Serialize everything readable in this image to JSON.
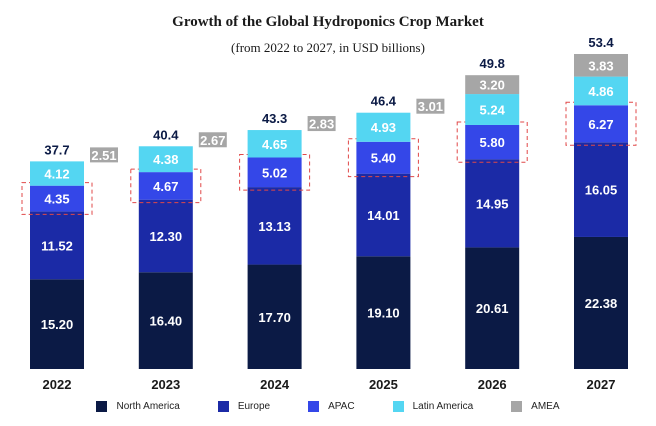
{
  "chart_data": {
    "type": "bar",
    "stacked": true,
    "title": "Growth of the Global Hydroponics Crop Market",
    "subtitle": "(from 2022 to 2027, in USD billions)",
    "categories": [
      "2022",
      "2023",
      "2024",
      "2025",
      "2026",
      "2027"
    ],
    "totals": [
      "37.7",
      "40.4",
      "43.3",
      "46.4",
      "49.8",
      "53.4"
    ],
    "series": [
      {
        "name": "North America",
        "color": "#0b1a45",
        "values": [
          15.2,
          16.4,
          17.7,
          19.1,
          20.61,
          22.38
        ]
      },
      {
        "name": "Europe",
        "color": "#1b2aa6",
        "values": [
          11.52,
          12.3,
          13.13,
          14.01,
          14.95,
          16.05
        ]
      },
      {
        "name": "APAC",
        "color": "#3447e8",
        "values": [
          4.35,
          4.67,
          5.02,
          5.4,
          5.8,
          6.27
        ]
      },
      {
        "name": "Latin America",
        "color": "#54d6f2",
        "values": [
          4.12,
          4.38,
          4.65,
          4.93,
          5.24,
          4.86
        ]
      },
      {
        "name": "AMEA",
        "color": "#a6a6a6",
        "values": [
          2.51,
          2.67,
          2.83,
          3.01,
          3.2,
          3.83
        ]
      }
    ],
    "highlighted_series": "APAC",
    "legend_position": "bottom",
    "grid": false,
    "ylim": [
      0,
      60
    ]
  }
}
